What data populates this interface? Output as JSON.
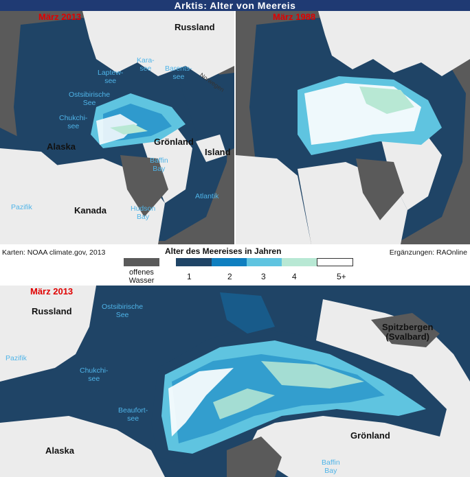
{
  "title": "Arktis: Alter von Meereis",
  "maps": {
    "top_left": {
      "date": "März 2013",
      "labels": {
        "russland": "Russland",
        "karasee": "Kara-\nsee",
        "laptewsee": "Laptew-\nsee",
        "barentssee": "Barents-\nsee",
        "norwegen": "Norwegen",
        "ostsibirische": "Ostsibirische\nSee",
        "chukchisee": "Chukchi-\nsee",
        "alaska": "Alaska",
        "groenland": "Grönland",
        "island": "Island",
        "baffin": "Baffin\nBay",
        "pazifik": "Pazifik",
        "kanada": "Kanada",
        "atlantik": "Atlantik",
        "hudson": "Hudson\nBay"
      }
    },
    "top_right": {
      "date": "März 1988"
    },
    "bottom": {
      "date": "März 2013",
      "labels": {
        "russland": "Russland",
        "ostsibirische": "Ostsibirische\nSee",
        "pazifik": "Pazifik",
        "chukchisee": "Chukchi-\nsee",
        "beaufortsee": "Beaufort-\nsee",
        "spitzbergen": "Spitzbergen\n(Svalbard)",
        "groenland": "Grönland",
        "alaska": "Alaska",
        "baffin": "Baffin\nBay"
      }
    }
  },
  "legend": {
    "credit_left": "Karten: NOAA climate.gov, 2013",
    "credit_right": "Ergänzungen: RAOnline",
    "title": "Alter des Meereises in Jahren",
    "open_water": "offenes\nWasser",
    "ticks": [
      "1",
      "2",
      "3",
      "4",
      "5+"
    ],
    "colors": {
      "open_water": "#5a5a5a",
      "age_1": "#1f4466",
      "age_2": "#0f7fc0",
      "age_3": "#5fc4e0",
      "age_4": "#b8e8d4",
      "age_5plus": "#ffffff"
    }
  }
}
